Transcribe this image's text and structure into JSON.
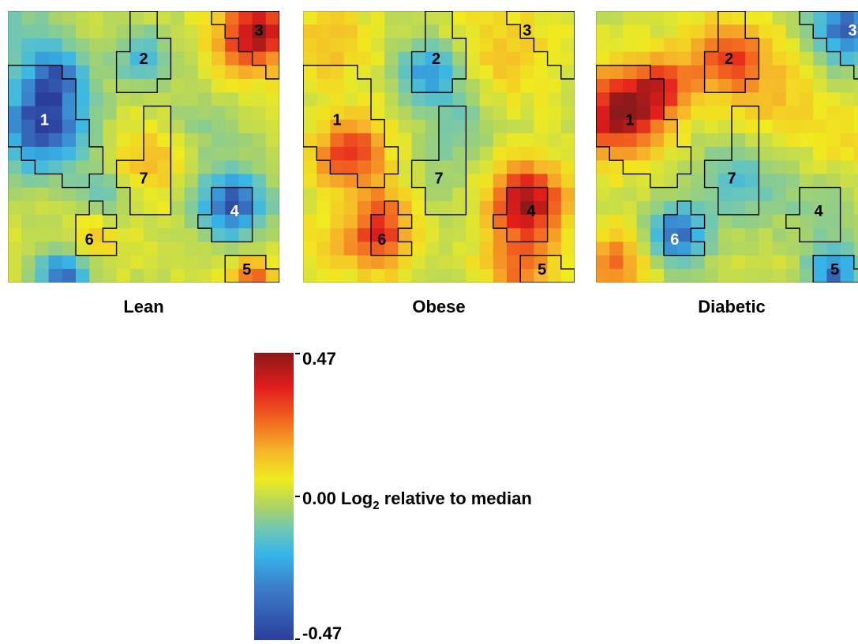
{
  "chart_data": [
    {
      "type": "heatmap",
      "title": "Lean",
      "grid_size": 20,
      "region_labels": [
        {
          "id": "1",
          "x": 2.7,
          "y": 8.0,
          "label_color": "white"
        },
        {
          "id": "2",
          "x": 10.0,
          "y": 3.5,
          "label_color": "black"
        },
        {
          "id": "3",
          "x": 18.5,
          "y": 1.4,
          "label_color": "black"
        },
        {
          "id": "4",
          "x": 16.7,
          "y": 14.7,
          "label_color": "white"
        },
        {
          "id": "5",
          "x": 17.6,
          "y": 19.0,
          "label_color": "black"
        },
        {
          "id": "6",
          "x": 6.0,
          "y": 16.8,
          "label_color": "black"
        },
        {
          "id": "7",
          "x": 10.0,
          "y": 12.3,
          "label_color": "black"
        }
      ],
      "blobs": [
        {
          "x": 2.5,
          "y": 8.5,
          "radius": 3.6,
          "value": -0.46
        },
        {
          "x": 3.5,
          "y": 4.5,
          "radius": 2.5,
          "value": -0.3
        },
        {
          "x": 4.0,
          "y": 19.5,
          "radius": 2.0,
          "value": -0.4
        },
        {
          "x": 1.0,
          "y": 1.0,
          "radius": 2.5,
          "value": -0.12
        },
        {
          "x": 18.5,
          "y": 1.5,
          "radius": 2.8,
          "value": 0.42
        },
        {
          "x": 16.5,
          "y": 3.8,
          "radius": 2.6,
          "value": 0.1
        },
        {
          "x": 16.5,
          "y": 14.3,
          "radius": 2.6,
          "value": -0.44
        },
        {
          "x": 10.0,
          "y": 3.5,
          "radius": 2.2,
          "value": -0.22
        },
        {
          "x": 18.0,
          "y": 19.5,
          "radius": 1.6,
          "value": 0.28
        },
        {
          "x": 10.5,
          "y": 11.0,
          "radius": 3.0,
          "value": 0.16
        },
        {
          "x": 6.5,
          "y": 16.5,
          "radius": 2.0,
          "value": 0.12
        },
        {
          "x": 14.5,
          "y": 8.5,
          "radius": 3.5,
          "value": -0.1
        },
        {
          "x": 7.0,
          "y": 13.5,
          "radius": 2.0,
          "value": -0.15
        }
      ]
    },
    {
      "type": "heatmap",
      "title": "Obese",
      "grid_size": 20,
      "region_labels": [
        {
          "id": "1",
          "x": 2.5,
          "y": 8.0,
          "label_color": "black"
        },
        {
          "id": "2",
          "x": 9.8,
          "y": 3.5,
          "label_color": "black"
        },
        {
          "id": "3",
          "x": 16.5,
          "y": 1.4,
          "label_color": "black"
        },
        {
          "id": "4",
          "x": 16.8,
          "y": 14.7,
          "label_color": "black"
        },
        {
          "id": "5",
          "x": 17.6,
          "y": 19.0,
          "label_color": "black"
        },
        {
          "id": "6",
          "x": 5.8,
          "y": 16.8,
          "label_color": "black"
        },
        {
          "id": "7",
          "x": 10.0,
          "y": 12.3,
          "label_color": "black"
        }
      ],
      "blobs": [
        {
          "x": 3.5,
          "y": 10.5,
          "radius": 2.8,
          "value": 0.34
        },
        {
          "x": 16.5,
          "y": 14.0,
          "radius": 2.9,
          "value": 0.46
        },
        {
          "x": 16.0,
          "y": 19.0,
          "radius": 2.8,
          "value": 0.24
        },
        {
          "x": 5.5,
          "y": 17.0,
          "radius": 2.5,
          "value": 0.3
        },
        {
          "x": 9.3,
          "y": 4.5,
          "radius": 2.3,
          "value": -0.32
        },
        {
          "x": 2.0,
          "y": 2.5,
          "radius": 3.0,
          "value": 0.14
        },
        {
          "x": 15.0,
          "y": 3.0,
          "radius": 4.0,
          "value": 0.12
        },
        {
          "x": 10.5,
          "y": 11.5,
          "radius": 3.2,
          "value": -0.06
        },
        {
          "x": 11.5,
          "y": 8.0,
          "radius": 2.5,
          "value": -0.14
        },
        {
          "x": 6.0,
          "y": 14.5,
          "radius": 2.2,
          "value": 0.15
        },
        {
          "x": 1.5,
          "y": 17.0,
          "radius": 2.5,
          "value": 0.08
        }
      ]
    },
    {
      "type": "heatmap",
      "title": "Diabetic",
      "grid_size": 20,
      "region_labels": [
        {
          "id": "1",
          "x": 2.5,
          "y": 8.0,
          "label_color": "black"
        },
        {
          "id": "2",
          "x": 9.8,
          "y": 3.5,
          "label_color": "black"
        },
        {
          "id": "3",
          "x": 18.9,
          "y": 1.4,
          "label_color": "white"
        },
        {
          "id": "4",
          "x": 16.4,
          "y": 14.7,
          "label_color": "black"
        },
        {
          "id": "5",
          "x": 17.6,
          "y": 19.0,
          "label_color": "black"
        },
        {
          "id": "6",
          "x": 5.8,
          "y": 16.8,
          "label_color": "white"
        },
        {
          "id": "7",
          "x": 10.0,
          "y": 12.3,
          "label_color": "black"
        }
      ],
      "blobs": [
        {
          "x": 1.8,
          "y": 7.5,
          "radius": 3.3,
          "value": 0.46
        },
        {
          "x": 9.8,
          "y": 3.5,
          "radius": 2.8,
          "value": 0.34
        },
        {
          "x": 5.0,
          "y": 5.5,
          "radius": 2.5,
          "value": 0.26
        },
        {
          "x": 18.5,
          "y": 1.2,
          "radius": 2.8,
          "value": -0.42
        },
        {
          "x": 6.0,
          "y": 16.5,
          "radius": 2.3,
          "value": -0.4
        },
        {
          "x": 17.5,
          "y": 19.3,
          "radius": 2.0,
          "value": -0.38
        },
        {
          "x": 10.5,
          "y": 12.5,
          "radius": 3.0,
          "value": -0.2
        },
        {
          "x": 16.0,
          "y": 14.5,
          "radius": 3.0,
          "value": -0.1
        },
        {
          "x": 1.5,
          "y": 18.5,
          "radius": 2.5,
          "value": 0.24
        },
        {
          "x": 13.5,
          "y": 7.5,
          "radius": 3.0,
          "value": 0.12
        },
        {
          "x": 14.5,
          "y": 3.5,
          "radius": 2.8,
          "value": 0.05
        },
        {
          "x": 18.5,
          "y": 9.5,
          "radius": 2.5,
          "value": 0.1
        }
      ]
    }
  ],
  "panels": [
    {
      "title": "Lean"
    },
    {
      "title": "Obese"
    },
    {
      "title": "Diabetic"
    }
  ],
  "colorbar": {
    "max_label": "0.47",
    "mid_label": "0.00 Log",
    "mid_sub": "2",
    "mid_suffix": " relative to median",
    "min_label": "-0.47",
    "range": [
      -0.47,
      0.47
    ],
    "colors": [
      "#2c3e9c",
      "#3b7dc8",
      "#37b6e8",
      "#6cc6b8",
      "#a8d36a",
      "#f0ea20",
      "#f6b42a",
      "#f26a20",
      "#e31c1c",
      "#8b1a1a"
    ]
  },
  "region_outlines": {
    "1": [
      [
        0,
        4
      ],
      [
        4,
        4
      ],
      [
        4,
        5
      ],
      [
        5,
        5
      ],
      [
        5,
        8
      ],
      [
        6,
        8
      ],
      [
        6,
        10
      ],
      [
        7,
        10
      ],
      [
        7,
        12
      ],
      [
        6,
        12
      ],
      [
        6,
        13
      ],
      [
        4,
        13
      ],
      [
        4,
        12
      ],
      [
        2,
        12
      ],
      [
        2,
        11
      ],
      [
        1,
        11
      ],
      [
        1,
        10
      ],
      [
        0,
        10
      ]
    ],
    "2": [
      [
        9,
        0
      ],
      [
        11,
        0
      ],
      [
        11,
        2
      ],
      [
        12,
        2
      ],
      [
        12,
        5
      ],
      [
        11,
        5
      ],
      [
        11,
        6
      ],
      [
        8,
        6
      ],
      [
        8,
        3
      ],
      [
        9,
        3
      ]
    ],
    "3": [
      [
        15,
        0
      ],
      [
        15,
        1
      ],
      [
        16,
        1
      ],
      [
        16,
        2
      ],
      [
        17,
        2
      ],
      [
        17,
        3
      ],
      [
        18,
        3
      ],
      [
        18,
        4
      ],
      [
        19,
        4
      ],
      [
        19,
        5
      ],
      [
        20,
        5
      ],
      [
        20,
        0
      ]
    ],
    "4": [
      [
        15,
        13
      ],
      [
        18,
        13
      ],
      [
        18,
        17
      ],
      [
        15,
        17
      ],
      [
        15,
        16
      ],
      [
        14,
        16
      ],
      [
        14,
        15
      ],
      [
        15,
        15
      ]
    ],
    "5": [
      [
        16,
        18
      ],
      [
        19,
        18
      ],
      [
        19,
        19
      ],
      [
        20,
        19
      ],
      [
        20,
        20
      ],
      [
        16,
        20
      ]
    ],
    "6": [
      [
        6,
        14
      ],
      [
        7,
        14
      ],
      [
        7,
        15
      ],
      [
        8,
        15
      ],
      [
        8,
        16
      ],
      [
        7,
        16
      ],
      [
        7,
        17
      ],
      [
        8,
        17
      ],
      [
        8,
        18
      ],
      [
        5,
        18
      ],
      [
        5,
        15
      ],
      [
        6,
        15
      ]
    ],
    "7": [
      [
        10,
        7
      ],
      [
        12,
        7
      ],
      [
        12,
        15
      ],
      [
        9,
        15
      ],
      [
        9,
        13
      ],
      [
        8,
        13
      ],
      [
        8,
        11
      ],
      [
        10,
        11
      ]
    ]
  }
}
